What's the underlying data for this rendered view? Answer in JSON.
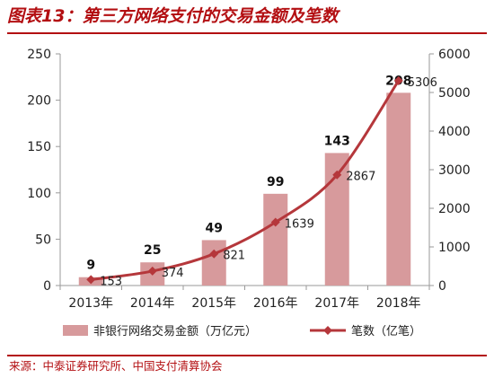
{
  "title": "图表13：第三方网络支付的交易金额及笔数",
  "source": "来源：中泰证券研究所、中国支付清算协会",
  "colors": {
    "bar": "#d79a9c",
    "line": "#b5373b",
    "title": "#b30f12",
    "axis": "#9a9a9a"
  },
  "chart_data": {
    "type": "bar",
    "categories": [
      "2013年",
      "2014年",
      "2015年",
      "2016年",
      "2017年",
      "2018年"
    ],
    "series": [
      {
        "name": "非银行网络交易金额（万亿元）",
        "type": "bar",
        "axis": "left",
        "values": [
          9,
          25,
          49,
          99,
          143,
          208
        ],
        "labels": [
          "9",
          "25",
          "49",
          "99",
          "143",
          "208"
        ]
      },
      {
        "name": "笔数（亿笔）",
        "type": "line",
        "axis": "right",
        "values": [
          153,
          374,
          821,
          1639,
          2867,
          5306
        ],
        "labels": [
          "153",
          "374",
          "821",
          "1639",
          "2867",
          "5306"
        ]
      }
    ],
    "y_left": {
      "range": [
        0,
        250
      ],
      "ticks": [
        0,
        50,
        100,
        150,
        200,
        250
      ],
      "tick_labels": [
        "0",
        "50",
        "100",
        "150",
        "200",
        "250"
      ]
    },
    "y_right": {
      "range": [
        0,
        6000
      ],
      "ticks": [
        0,
        1000,
        2000,
        3000,
        4000,
        5000,
        6000
      ],
      "tick_labels": [
        "0",
        "1000",
        "2000",
        "3000",
        "4000",
        "5000",
        "6000"
      ]
    },
    "grid": false,
    "legend_position": "bottom"
  }
}
